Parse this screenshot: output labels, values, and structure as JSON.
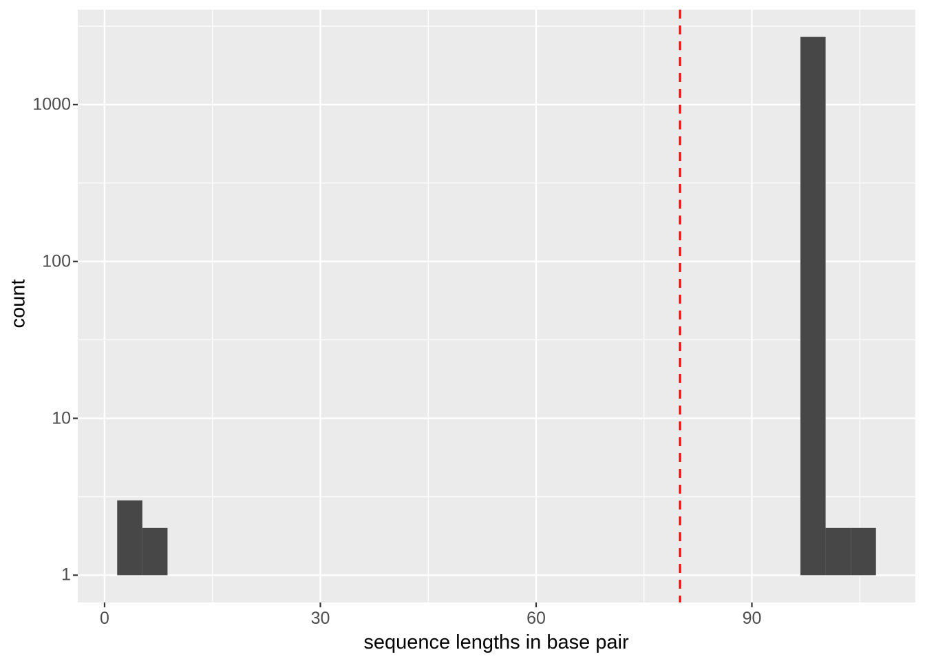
{
  "chart_data": {
    "type": "histogram",
    "title": "",
    "xlabel": "sequence lengths in base pair",
    "ylabel": "count",
    "y_scale": "log10",
    "grid": true,
    "legend": "none",
    "x_ticks": [
      0,
      30,
      60,
      90
    ],
    "x_minor_ticks": [
      15,
      45,
      75,
      105
    ],
    "y_ticks": [
      1,
      10,
      100,
      1000
    ],
    "y_minor_ticks": [
      3.162,
      31.62,
      316.2,
      3162
    ],
    "xlim": [
      -3.73,
      112.73
    ],
    "ylim": [
      0.67,
      4030
    ],
    "bins": [
      {
        "x0": 1.75,
        "x1": 5.25,
        "count": 3
      },
      {
        "x0": 5.25,
        "x1": 8.75,
        "count": 2
      },
      {
        "x0": 96.75,
        "x1": 100.25,
        "count": 2700
      },
      {
        "x0": 100.25,
        "x1": 103.75,
        "count": 2
      },
      {
        "x0": 103.75,
        "x1": 107.25,
        "count": 2
      }
    ],
    "vline": {
      "x": 80,
      "style": "dashed",
      "color": "#FF0000"
    },
    "colors": {
      "bar_fill": "#474747",
      "panel_background": "#EBEBEB",
      "gridline": "#FFFFFF",
      "tick_label": "#4D4D4D",
      "tick_mark": "#333333",
      "axis_title": "#000000",
      "figure_background": "#FFFFFF"
    }
  }
}
